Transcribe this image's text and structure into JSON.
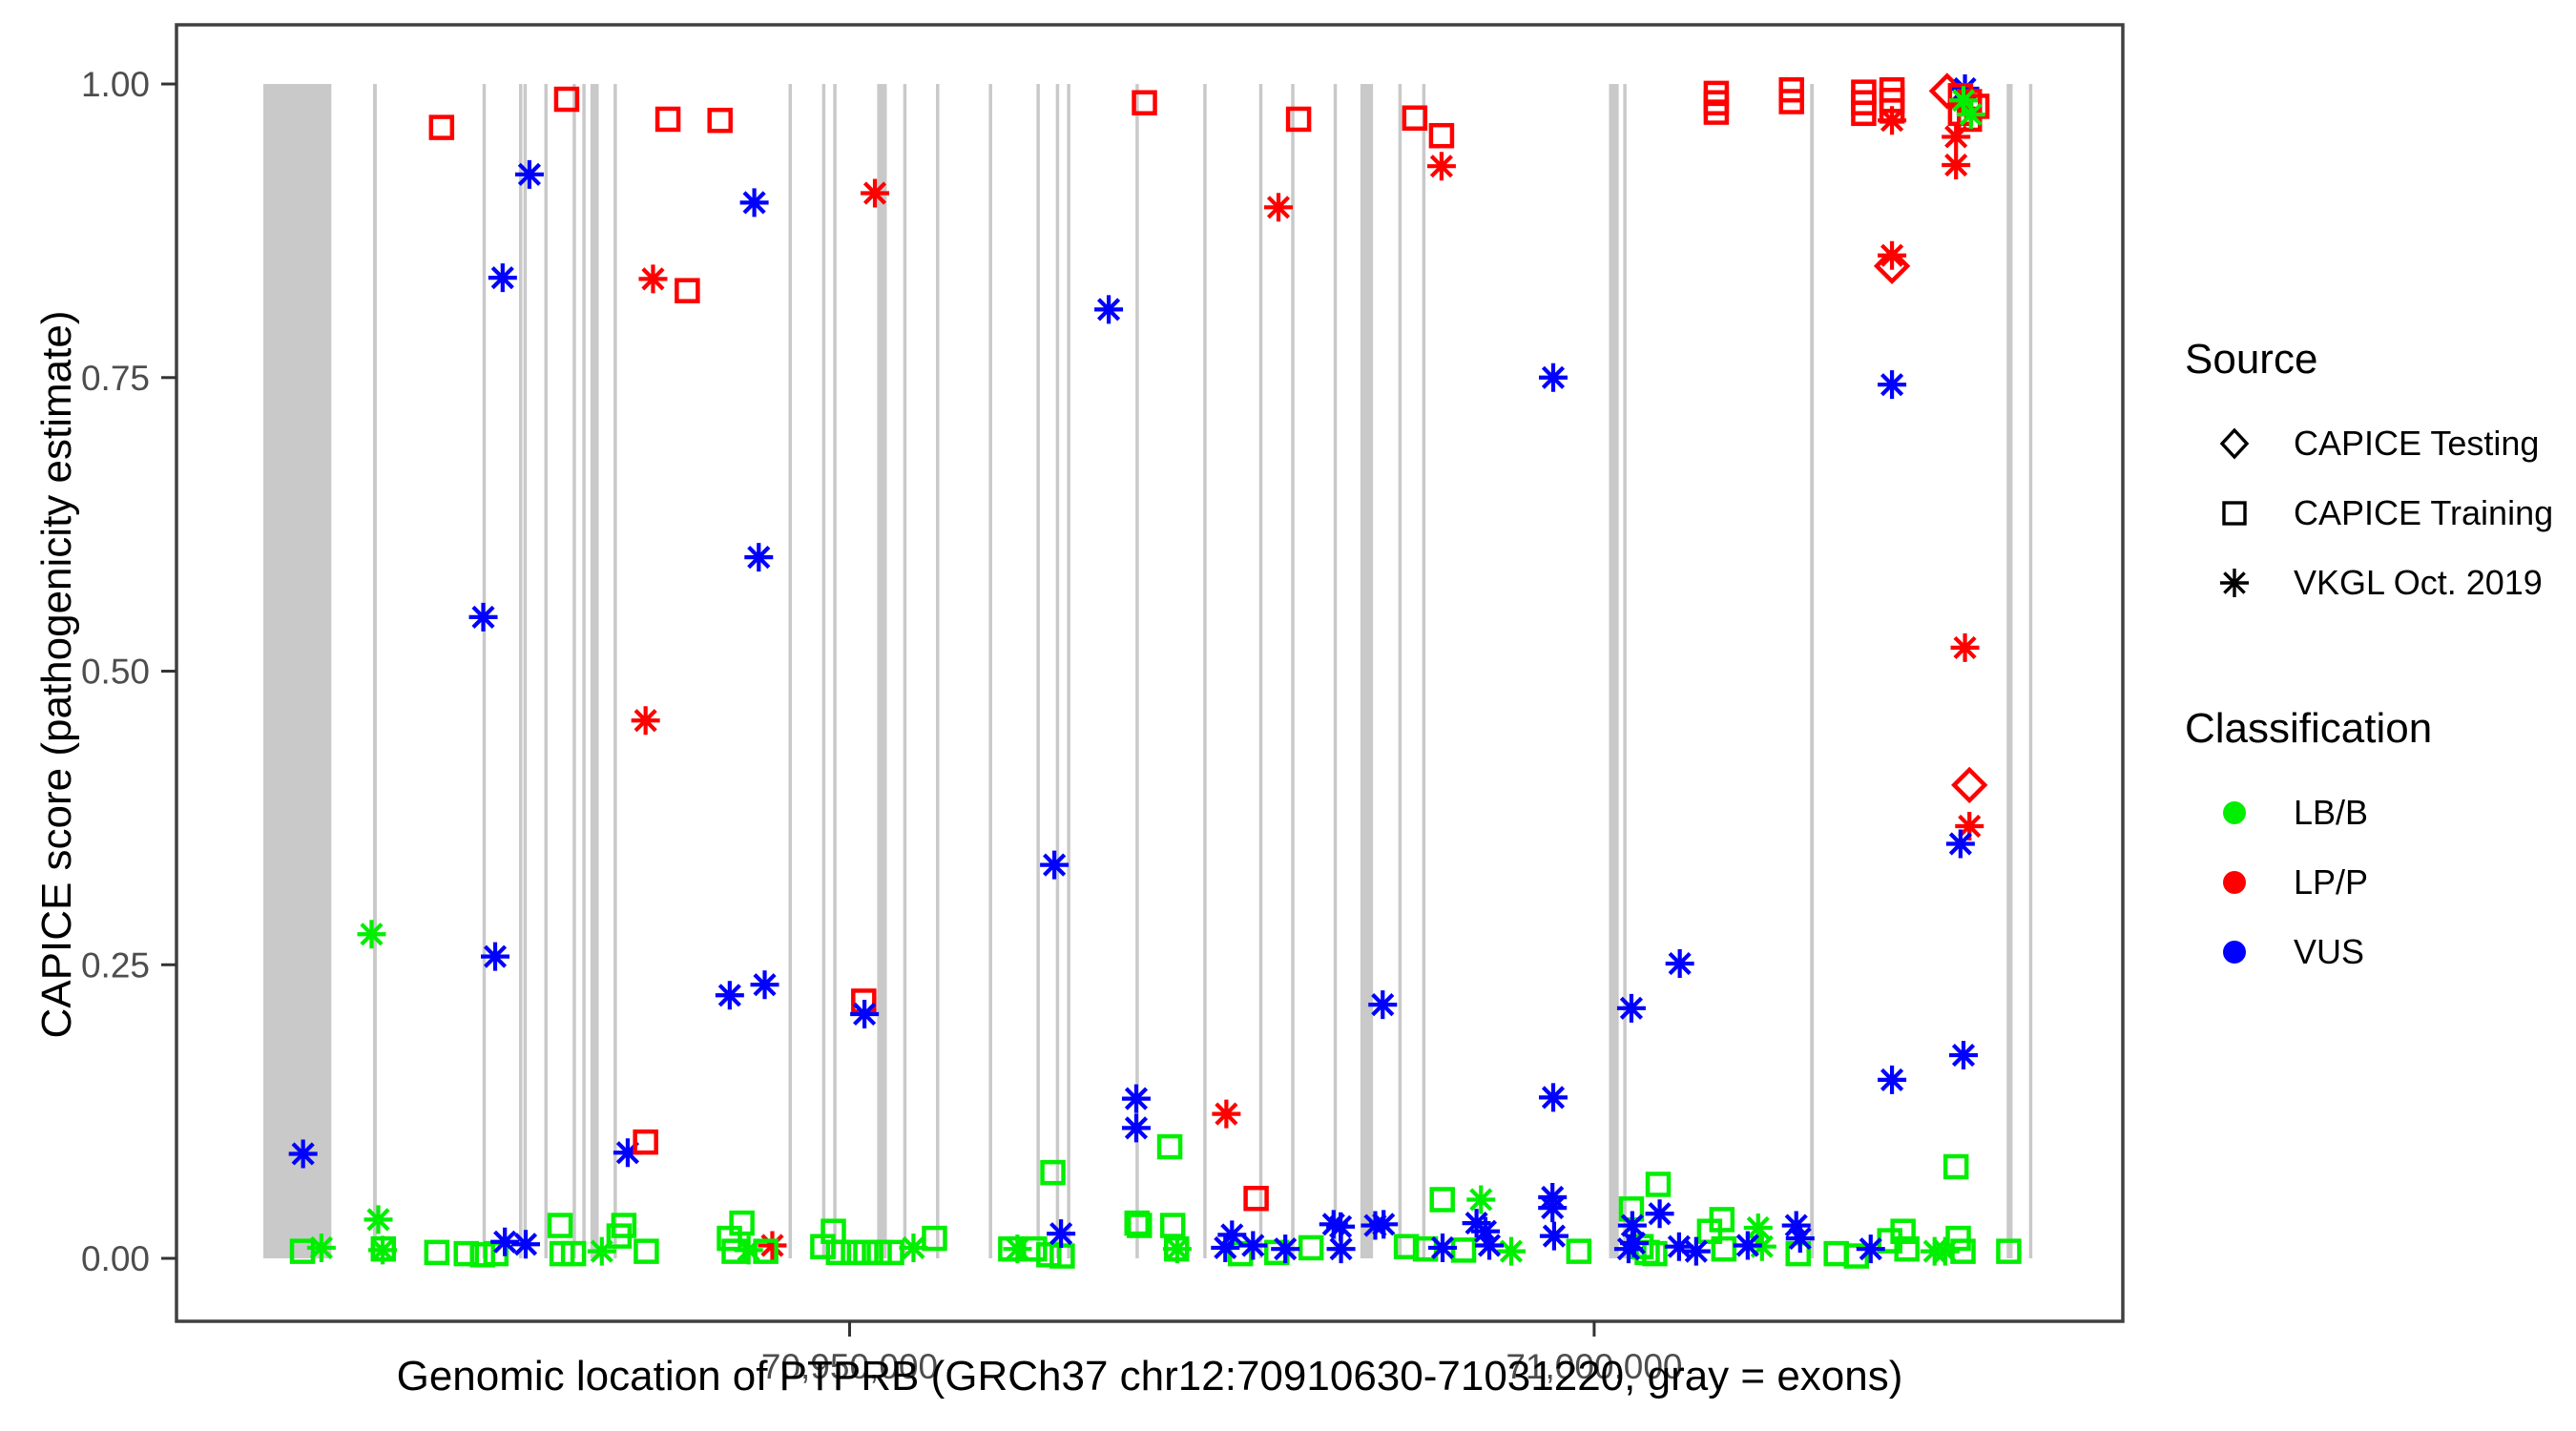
{
  "chart_data": {
    "type": "scatter",
    "title": "",
    "xlabel": "Genomic location of PTPRB (GRCh37 chr12:70910630-71031220, gray = exons)",
    "ylabel": "CAPICE score (pathogenicity estimate)",
    "x_domain": [
      70904800,
      71035500
    ],
    "y_domain": [
      -0.0536,
      1.0504
    ],
    "x_ticks": [
      {
        "value": 70950000,
        "label": "70,950,000"
      },
      {
        "value": 71000000,
        "label": "71,000,000"
      }
    ],
    "y_ticks": [
      {
        "value": 0.0,
        "label": "0.00"
      },
      {
        "value": 0.25,
        "label": "0.25"
      },
      {
        "value": 0.5,
        "label": "0.50"
      },
      {
        "value": 0.75,
        "label": "0.75"
      },
      {
        "value": 1.0,
        "label": "1.00"
      }
    ],
    "grid": false,
    "legend_position": "right",
    "exon_color": "#c9c9c9",
    "class_colors": {
      "LB/B": "#00ee00",
      "LP/P": "#ff0000",
      "VUS": "#0000ff"
    },
    "source_shapes": {
      "testing": "diamond",
      "training": "square",
      "vkgl": "asterisk"
    },
    "exons": [
      [
        70910630,
        70915200
      ],
      [
        70918000,
        70918250
      ],
      [
        70925350,
        70925550
      ],
      [
        70927800,
        70927980
      ],
      [
        70928100,
        70928300
      ],
      [
        70929500,
        70929700
      ],
      [
        70931400,
        70931600
      ],
      [
        70932050,
        70932250
      ],
      [
        70932600,
        70933150
      ],
      [
        70934150,
        70934350
      ],
      [
        70945900,
        70946100
      ],
      [
        70948150,
        70948350
      ],
      [
        70948900,
        70949100
      ],
      [
        70951850,
        70952500
      ],
      [
        70953600,
        70953800
      ],
      [
        70955800,
        70956000
      ],
      [
        70959350,
        70959550
      ],
      [
        70962550,
        70962750
      ],
      [
        70963850,
        70964050
      ],
      [
        70964600,
        70964800
      ],
      [
        70969200,
        70969400
      ],
      [
        70973750,
        70973950
      ],
      [
        70977500,
        70977700
      ],
      [
        70979650,
        70979850
      ],
      [
        70982500,
        70982700
      ],
      [
        70984300,
        70985150
      ],
      [
        70986850,
        70987050
      ],
      [
        70988450,
        70988650
      ],
      [
        71001000,
        71001650
      ],
      [
        71001950,
        71002150
      ],
      [
        71014500,
        71014750
      ],
      [
        71027700,
        71028100
      ],
      [
        71029200,
        71029400
      ]
    ],
    "point_fields": [
      "source",
      "classification",
      "genomic_position",
      "capice_score"
    ],
    "points": [
      [
        "training",
        "LP/P",
        70922600,
        0.963
      ],
      [
        "training",
        "LP/P",
        70931000,
        0.987
      ],
      [
        "training",
        "LP/P",
        70937800,
        0.97
      ],
      [
        "training",
        "LP/P",
        70941300,
        0.969
      ],
      [
        "training",
        "LP/P",
        70939100,
        0.824
      ],
      [
        "vkgl",
        "VUS",
        70928500,
        0.923
      ],
      [
        "vkgl",
        "VUS",
        70926700,
        0.835
      ],
      [
        "vkgl",
        "LP/P",
        70936800,
        0.834
      ],
      [
        "vkgl",
        "VUS",
        70925400,
        0.546
      ],
      [
        "vkgl",
        "LP/P",
        70936300,
        0.458
      ],
      [
        "vkgl",
        "VUS",
        70943900,
        0.597
      ],
      [
        "vkgl",
        "LP/P",
        70951700,
        0.907
      ],
      [
        "vkgl",
        "VUS",
        70943600,
        0.899
      ],
      [
        "vkgl",
        "VUS",
        70967400,
        0.808
      ],
      [
        "training",
        "LP/P",
        70969800,
        0.984
      ],
      [
        "training",
        "LP/P",
        70980150,
        0.97
      ],
      [
        "training",
        "LP/P",
        70987950,
        0.971
      ],
      [
        "training",
        "LP/P",
        70989750,
        0.956
      ],
      [
        "vkgl",
        "LP/P",
        70989750,
        0.93
      ],
      [
        "vkgl",
        "LP/P",
        70978800,
        0.895
      ],
      [
        "vkgl",
        "VUS",
        70997250,
        0.75
      ],
      [
        "training",
        "LP/P",
        71008200,
        0.992
      ],
      [
        "training",
        "LP/P",
        71008200,
        0.984
      ],
      [
        "training",
        "LP/P",
        71008200,
        0.976
      ],
      [
        "training",
        "LP/P",
        71013250,
        0.995
      ],
      [
        "training",
        "LP/P",
        71013250,
        0.985
      ],
      [
        "training",
        "LP/P",
        71018100,
        0.993
      ],
      [
        "training",
        "LP/P",
        71018100,
        0.984
      ],
      [
        "training",
        "LP/P",
        71018100,
        0.975
      ],
      [
        "training",
        "LP/P",
        71020000,
        0.995
      ],
      [
        "training",
        "LP/P",
        71020000,
        0.986
      ],
      [
        "training",
        "LP/P",
        71020000,
        0.977
      ],
      [
        "vkgl",
        "LP/P",
        71020000,
        0.969
      ],
      [
        "vkgl",
        "LP/P",
        71020000,
        0.854
      ],
      [
        "testing",
        "LP/P",
        71020000,
        0.845
      ],
      [
        "vkgl",
        "VUS",
        71020000,
        0.744
      ],
      [
        "testing",
        "LP/P",
        71023700,
        0.994
      ],
      [
        "vkgl",
        "VUS",
        71024900,
        0.996
      ],
      [
        "training",
        "LP/P",
        71024600,
        0.99
      ],
      [
        "training",
        "LP/P",
        71025200,
        0.985
      ],
      [
        "training",
        "LP/P",
        71025700,
        0.981
      ],
      [
        "training",
        "LP/P",
        71024600,
        0.975
      ],
      [
        "training",
        "LP/P",
        71025200,
        0.97
      ],
      [
        "vkgl",
        "LB/B",
        71024800,
        0.986
      ],
      [
        "vkgl",
        "LB/B",
        71025300,
        0.974
      ],
      [
        "vkgl",
        "LP/P",
        71024300,
        0.955
      ],
      [
        "vkgl",
        "LP/P",
        71024300,
        0.931
      ],
      [
        "vkgl",
        "LP/P",
        71024900,
        0.52
      ],
      [
        "testing",
        "LP/P",
        71025200,
        0.403
      ],
      [
        "vkgl",
        "LP/P",
        71025200,
        0.368
      ],
      [
        "vkgl",
        "VUS",
        71024600,
        0.353
      ],
      [
        "vkgl",
        "VUS",
        71024800,
        0.173
      ],
      [
        "vkgl",
        "VUS",
        71020000,
        0.152
      ],
      [
        "training",
        "LB/B",
        71024300,
        0.078
      ],
      [
        "vkgl",
        "VUS",
        70913300,
        0.089
      ],
      [
        "vkgl",
        "VUS",
        70935100,
        0.09
      ],
      [
        "training",
        "LP/P",
        70936300,
        0.099
      ],
      [
        "vkgl",
        "LB/B",
        70917900,
        0.276
      ],
      [
        "vkgl",
        "LB/B",
        70918350,
        0.033
      ],
      [
        "vkgl",
        "VUS",
        70926200,
        0.257
      ],
      [
        "vkgl",
        "VUS",
        70941950,
        0.224
      ],
      [
        "vkgl",
        "VUS",
        70944300,
        0.233
      ],
      [
        "training",
        "LP/P",
        70950950,
        0.219
      ],
      [
        "vkgl",
        "VUS",
        70951000,
        0.208
      ],
      [
        "vkgl",
        "VUS",
        70963750,
        0.335
      ],
      [
        "vkgl",
        "VUS",
        70969250,
        0.136
      ],
      [
        "vkgl",
        "VUS",
        70969250,
        0.111
      ],
      [
        "training",
        "LB/B",
        70963650,
        0.073
      ],
      [
        "training",
        "LB/B",
        70969300,
        0.03
      ],
      [
        "vkgl",
        "VUS",
        70985800,
        0.216
      ],
      [
        "vkgl",
        "VUS",
        71002500,
        0.213
      ],
      [
        "vkgl",
        "VUS",
        70997250,
        0.137
      ],
      [
        "vkgl",
        "LP/P",
        70975300,
        0.123
      ],
      [
        "training",
        "LB/B",
        70971500,
        0.095
      ],
      [
        "training",
        "LP/P",
        70977300,
        0.051
      ],
      [
        "training",
        "LB/B",
        70989800,
        0.05
      ],
      [
        "vkgl",
        "LB/B",
        70992400,
        0.05
      ],
      [
        "vkgl",
        "VUS",
        70997200,
        0.052
      ],
      [
        "vkgl",
        "VUS",
        70997200,
        0.043
      ],
      [
        "vkgl",
        "VUS",
        71005750,
        0.251
      ],
      [
        "training",
        "LB/B",
        71004300,
        0.063
      ],
      [
        "vkgl",
        "VUS",
        71004400,
        0.038
      ],
      [
        "vkgl",
        "VUS",
        70992100,
        0.03
      ],
      [
        "vkgl",
        "VUS",
        70982500,
        0.029
      ],
      [
        "vkgl",
        "VUS",
        70985300,
        0.028
      ],
      [
        "training",
        "LB/B",
        71002500,
        0.042
      ],
      [
        "vkgl",
        "LP/P",
        70944810,
        0.011
      ],
      [
        "training",
        "LB/B",
        70913260,
        0.006
      ],
      [
        "training",
        "LB/B",
        70918690,
        0.008
      ],
      [
        "training",
        "LB/B",
        70922280,
        0.005
      ],
      [
        "training",
        "LB/B",
        70924260,
        0.004
      ],
      [
        "training",
        "LB/B",
        70925350,
        0.003
      ],
      [
        "training",
        "LB/B",
        70926250,
        0.004
      ],
      [
        "training",
        "LB/B",
        70930560,
        0.028
      ],
      [
        "training",
        "LB/B",
        70930690,
        0.004
      ],
      [
        "training",
        "LB/B",
        70931460,
        0.004
      ],
      [
        "training",
        "LB/B",
        70934520,
        0.019
      ],
      [
        "training",
        "LB/B",
        70934840,
        0.028
      ],
      [
        "training",
        "LB/B",
        70936350,
        0.006
      ],
      [
        "training",
        "LB/B",
        70941930,
        0.017
      ],
      [
        "training",
        "LB/B",
        70942250,
        0.006
      ],
      [
        "training",
        "LB/B",
        70942770,
        0.03
      ],
      [
        "training",
        "LB/B",
        70944370,
        0.006
      ],
      [
        "training",
        "LB/B",
        70948200,
        0.01
      ],
      [
        "training",
        "LB/B",
        70948910,
        0.023
      ],
      [
        "training",
        "LB/B",
        70949250,
        0.005
      ],
      [
        "training",
        "LB/B",
        70950260,
        0.005
      ],
      [
        "training",
        "LB/B",
        70951090,
        0.005
      ],
      [
        "training",
        "LB/B",
        70951990,
        0.005
      ],
      [
        "training",
        "LB/B",
        70952820,
        0.005
      ],
      [
        "training",
        "LB/B",
        70955700,
        0.017
      ],
      [
        "training",
        "LB/B",
        70960820,
        0.008
      ],
      [
        "training",
        "LB/B",
        70962420,
        0.008
      ],
      [
        "training",
        "LB/B",
        70963380,
        0.003
      ],
      [
        "training",
        "LB/B",
        70964280,
        0.002
      ],
      [
        "training",
        "LB/B",
        70969460,
        0.028
      ],
      [
        "training",
        "LB/B",
        70971700,
        0.028
      ],
      [
        "training",
        "LB/B",
        70971960,
        0.008
      ],
      [
        "training",
        "LB/B",
        70976250,
        0.004
      ],
      [
        "training",
        "LB/B",
        70978690,
        0.005
      ],
      [
        "training",
        "LB/B",
        70980990,
        0.009
      ],
      [
        "training",
        "LB/B",
        70987390,
        0.01
      ],
      [
        "training",
        "LB/B",
        70988670,
        0.008
      ],
      [
        "training",
        "LB/B",
        70991230,
        0.007
      ],
      [
        "training",
        "LB/B",
        70998970,
        0.006
      ],
      [
        "training",
        "LB/B",
        71003150,
        0.01
      ],
      [
        "training",
        "LB/B",
        71003560,
        0.005
      ],
      [
        "training",
        "LB/B",
        71004070,
        0.004
      ],
      [
        "training",
        "LB/B",
        71007750,
        0.023
      ],
      [
        "training",
        "LB/B",
        71008580,
        0.033
      ],
      [
        "training",
        "LB/B",
        71008710,
        0.008
      ],
      [
        "training",
        "LB/B",
        71013700,
        0.004
      ],
      [
        "training",
        "LB/B",
        71016260,
        0.004
      ],
      [
        "training",
        "LB/B",
        71017610,
        0.002
      ],
      [
        "training",
        "LB/B",
        71019850,
        0.015
      ],
      [
        "training",
        "LB/B",
        71020740,
        0.023
      ],
      [
        "training",
        "LB/B",
        71021000,
        0.008
      ],
      [
        "training",
        "LB/B",
        71024450,
        0.017
      ],
      [
        "training",
        "LB/B",
        71024770,
        0.006
      ],
      [
        "training",
        "LB/B",
        71027840,
        0.006
      ],
      [
        "vkgl",
        "LB/B",
        70914530,
        0.009
      ],
      [
        "vkgl",
        "LB/B",
        70918640,
        0.007
      ],
      [
        "vkgl",
        "LB/B",
        70933360,
        0.006
      ],
      [
        "vkgl",
        "LB/B",
        70943220,
        0.007
      ],
      [
        "vkgl",
        "LB/B",
        70954290,
        0.009
      ],
      [
        "vkgl",
        "LB/B",
        70961270,
        0.008
      ],
      [
        "vkgl",
        "LB/B",
        70972000,
        0.008
      ],
      [
        "vkgl",
        "LB/B",
        70994430,
        0.006
      ],
      [
        "vkgl",
        "LB/B",
        71011010,
        0.026
      ],
      [
        "vkgl",
        "LB/B",
        71011270,
        0.01
      ],
      [
        "vkgl",
        "LB/B",
        71022860,
        0.006
      ],
      [
        "vkgl",
        "LB/B",
        71023570,
        0.006
      ],
      [
        "vkgl",
        "VUS",
        70926850,
        0.014
      ],
      [
        "vkgl",
        "VUS",
        70928250,
        0.012
      ],
      [
        "vkgl",
        "VUS",
        70964200,
        0.021
      ],
      [
        "vkgl",
        "VUS",
        70975230,
        0.009
      ],
      [
        "vkgl",
        "VUS",
        70975680,
        0.02
      ],
      [
        "vkgl",
        "VUS",
        70977090,
        0.011
      ],
      [
        "vkgl",
        "VUS",
        70979260,
        0.008
      ],
      [
        "vkgl",
        "VUS",
        70982970,
        0.027
      ],
      [
        "vkgl",
        "VUS",
        70983000,
        0.008
      ],
      [
        "vkgl",
        "VUS",
        70985860,
        0.029
      ],
      [
        "vkgl",
        "VUS",
        70989820,
        0.009
      ],
      [
        "vkgl",
        "VUS",
        70992700,
        0.023
      ],
      [
        "vkgl",
        "VUS",
        70992960,
        0.011
      ],
      [
        "vkgl",
        "VUS",
        70997310,
        0.019
      ],
      [
        "vkgl",
        "VUS",
        71002310,
        0.008
      ],
      [
        "vkgl",
        "VUS",
        71002560,
        0.028
      ],
      [
        "vkgl",
        "VUS",
        71002690,
        0.013
      ],
      [
        "vkgl",
        "VUS",
        71005700,
        0.01
      ],
      [
        "vkgl",
        "VUS",
        71006850,
        0.006
      ],
      [
        "vkgl",
        "VUS",
        71010310,
        0.011
      ],
      [
        "vkgl",
        "VUS",
        71013570,
        0.028
      ],
      [
        "vkgl",
        "VUS",
        71013830,
        0.017
      ],
      [
        "vkgl",
        "VUS",
        71018570,
        0.008
      ]
    ]
  },
  "legend": {
    "source": {
      "title": "Source",
      "items": [
        {
          "shape": "diamond",
          "label": "CAPICE Testing"
        },
        {
          "shape": "square",
          "label": "CAPICE Training"
        },
        {
          "shape": "asterisk",
          "label": "VKGL Oct. 2019"
        }
      ]
    },
    "classification": {
      "title": "Classification",
      "items": [
        {
          "color": "#00ee00",
          "label": "LB/B"
        },
        {
          "color": "#ff0000",
          "label": "LP/P"
        },
        {
          "color": "#0000ff",
          "label": "VUS"
        }
      ]
    }
  }
}
